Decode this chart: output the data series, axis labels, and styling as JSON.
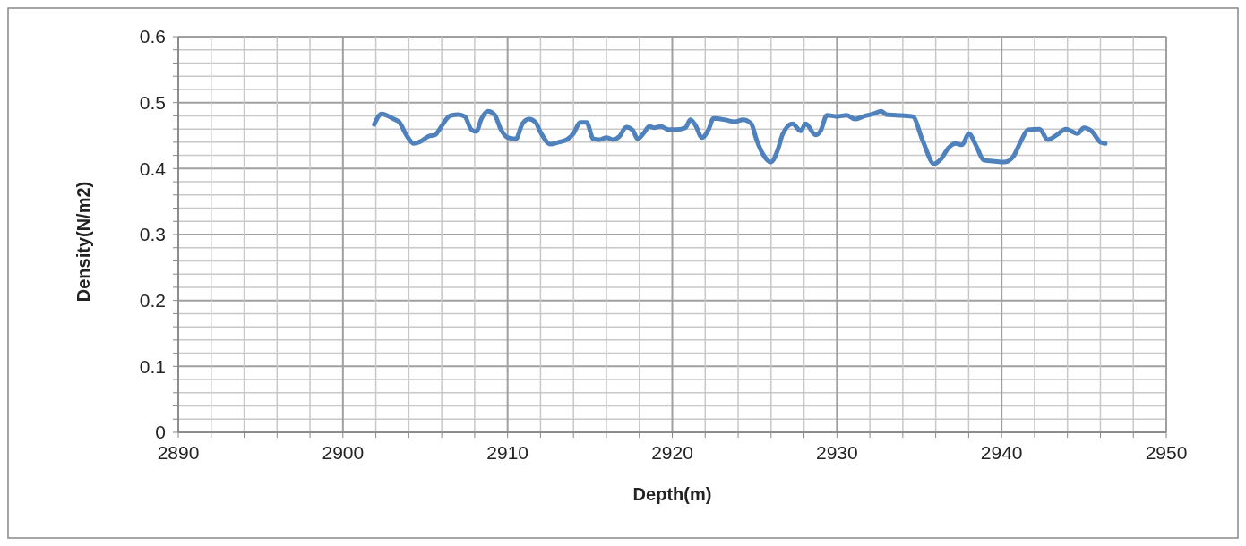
{
  "chart_data": {
    "type": "line",
    "xlabel": "Depth(m)",
    "ylabel": "Density(N/m2)",
    "xlim": [
      2890,
      2950
    ],
    "ylim": [
      0,
      0.6
    ],
    "xticks": [
      2890,
      {
        "value": 2892,
        "label": null
      },
      {
        "value": 2894,
        "label": null
      },
      {
        "value": 2896,
        "label": null
      },
      {
        "value": 2898,
        "label": null
      },
      2900,
      {
        "value": 2902,
        "label": null
      },
      {
        "value": 2904,
        "label": null
      },
      {
        "value": 2906,
        "label": null
      },
      {
        "value": 2908,
        "label": null
      },
      2910,
      {
        "value": 2912,
        "label": null
      },
      {
        "value": 2914,
        "label": null
      },
      {
        "value": 2916,
        "label": null
      },
      {
        "value": 2918,
        "label": null
      },
      2920,
      {
        "value": 2922,
        "label": null
      },
      {
        "value": 2924,
        "label": null
      },
      {
        "value": 2926,
        "label": null
      },
      {
        "value": 2928,
        "label": null
      },
      2930,
      {
        "value": 2932,
        "label": null
      },
      {
        "value": 2934,
        "label": null
      },
      {
        "value": 2936,
        "label": null
      },
      {
        "value": 2938,
        "label": null
      },
      2940,
      {
        "value": 2942,
        "label": null
      },
      {
        "value": 2944,
        "label": null
      },
      {
        "value": 2946,
        "label": null
      },
      {
        "value": 2948,
        "label": null
      },
      2950
    ],
    "yticks": [
      0,
      {
        "value": 0.02,
        "label": null
      },
      {
        "value": 0.04,
        "label": null
      },
      {
        "value": 0.06,
        "label": null
      },
      {
        "value": 0.08,
        "label": null
      },
      0.1,
      {
        "value": 0.12,
        "label": null
      },
      {
        "value": 0.14,
        "label": null
      },
      {
        "value": 0.16,
        "label": null
      },
      {
        "value": 0.18,
        "label": null
      },
      0.2,
      {
        "value": 0.22,
        "label": null
      },
      {
        "value": 0.24,
        "label": null
      },
      {
        "value": 0.26,
        "label": null
      },
      {
        "value": 0.28,
        "label": null
      },
      0.3,
      {
        "value": 0.32,
        "label": null
      },
      {
        "value": 0.34,
        "label": null
      },
      {
        "value": 0.36,
        "label": null
      },
      {
        "value": 0.38,
        "label": null
      },
      0.4,
      {
        "value": 0.42,
        "label": null
      },
      {
        "value": 0.44,
        "label": null
      },
      {
        "value": 0.46,
        "label": null
      },
      {
        "value": 0.48,
        "label": null
      },
      0.5,
      {
        "value": 0.52,
        "label": null
      },
      {
        "value": 0.54,
        "label": null
      },
      {
        "value": 0.56,
        "label": null
      },
      {
        "value": 0.58,
        "label": null
      },
      0.6
    ],
    "grid": true,
    "marker": "none",
    "line_style": "solid",
    "series": [
      {
        "color": "#4f81bd",
        "x": [
          2901.9,
          2902.35,
          2903.1,
          2903.4,
          2903.9,
          2904.3,
          2904.7,
          2905.2,
          2905.6,
          2905.9,
          2906.5,
          2907.0,
          2907.4,
          2907.8,
          2908.1,
          2908.4,
          2908.8,
          2909.2,
          2909.6,
          2910.0,
          2910.5,
          2910.9,
          2911.3,
          2911.7,
          2912.0,
          2912.6,
          2913.1,
          2913.6,
          2914.0,
          2914.4,
          2914.8,
          2915.2,
          2915.6,
          2916.0,
          2916.4,
          2916.8,
          2917.2,
          2917.6,
          2917.9,
          2918.3,
          2918.6,
          2918.9,
          2919.3,
          2919.8,
          2920.2,
          2920.8,
          2921.1,
          2921.4,
          2921.8,
          2922.2,
          2922.5,
          2923.2,
          2923.8,
          2924.3,
          2924.8,
          2925.1,
          2925.5,
          2926.0,
          2926.4,
          2926.7,
          2927.3,
          2927.8,
          2928.1,
          2928.7,
          2929.0,
          2929.4,
          2930.0,
          2930.6,
          2931.1,
          2931.6,
          2932.2,
          2932.7,
          2933.0,
          2933.6,
          2934.6,
          2935.2,
          2935.9,
          2936.3,
          2936.8,
          2937.2,
          2937.6,
          2938.0,
          2938.5,
          2938.9,
          2939.6,
          2940.2,
          2940.7,
          2941.2,
          2941.6,
          2942.3,
          2942.8,
          2943.4,
          2943.9,
          2944.6,
          2945.0,
          2945.5,
          2946.0,
          2946.3
        ],
        "values": [
          0.467,
          0.483,
          0.475,
          0.471,
          0.449,
          0.438,
          0.441,
          0.449,
          0.451,
          0.461,
          0.48,
          0.482,
          0.479,
          0.459,
          0.456,
          0.475,
          0.487,
          0.482,
          0.459,
          0.447,
          0.445,
          0.468,
          0.475,
          0.47,
          0.455,
          0.437,
          0.44,
          0.444,
          0.453,
          0.47,
          0.47,
          0.445,
          0.444,
          0.447,
          0.444,
          0.449,
          0.463,
          0.458,
          0.445,
          0.455,
          0.464,
          0.462,
          0.464,
          0.459,
          0.459,
          0.462,
          0.474,
          0.466,
          0.447,
          0.459,
          0.476,
          0.474,
          0.471,
          0.474,
          0.468,
          0.445,
          0.422,
          0.41,
          0.428,
          0.452,
          0.468,
          0.457,
          0.468,
          0.451,
          0.457,
          0.481,
          0.479,
          0.481,
          0.475,
          0.479,
          0.483,
          0.487,
          0.482,
          0.481,
          0.479,
          0.443,
          0.407,
          0.414,
          0.432,
          0.438,
          0.436,
          0.453,
          0.432,
          0.413,
          0.411,
          0.41,
          0.418,
          0.443,
          0.459,
          0.46,
          0.444,
          0.452,
          0.46,
          0.453,
          0.462,
          0.456,
          0.44,
          0.438
        ]
      }
    ]
  }
}
